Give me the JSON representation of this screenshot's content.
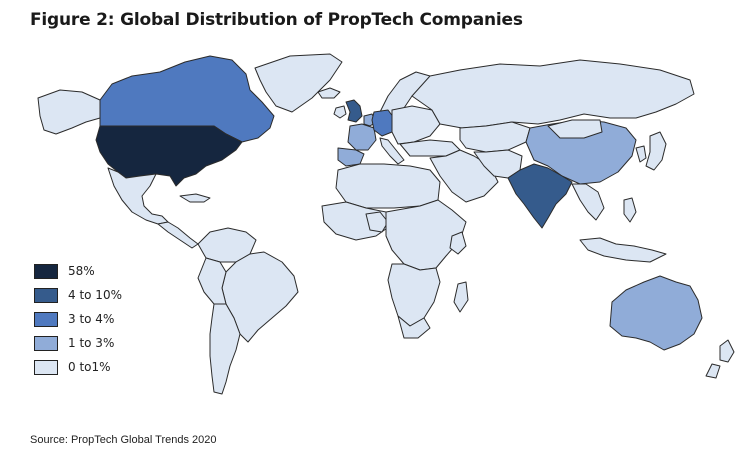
{
  "title": "Figure 2: Global Distribution of PropTech Companies",
  "source": "Source: PropTech Global Trends 2020",
  "colors": {
    "ocean": "#ffffff",
    "border": "#2b2b2b",
    "tier_58": "#15263f",
    "tier_4_10": "#355b8c",
    "tier_3_4": "#4f79bf",
    "tier_1_3": "#90acd8",
    "tier_0_1": "#dce6f3"
  },
  "legend": [
    {
      "label": "58%",
      "tier": "tier_58"
    },
    {
      "label": "4 to 10%",
      "tier": "tier_4_10"
    },
    {
      "label": "3 to 4%",
      "tier": "tier_3_4"
    },
    {
      "label": "1 to 3%",
      "tier": "tier_1_3"
    },
    {
      "label": "0 to1%",
      "tier": "tier_0_1"
    }
  ],
  "regions": [
    {
      "name": "United States",
      "tier": "tier_58"
    },
    {
      "name": "India",
      "tier": "tier_4_10"
    },
    {
      "name": "United Kingdom",
      "tier": "tier_4_10"
    },
    {
      "name": "Canada",
      "tier": "tier_3_4"
    },
    {
      "name": "Germany",
      "tier": "tier_3_4"
    },
    {
      "name": "China",
      "tier": "tier_1_3"
    },
    {
      "name": "Australia",
      "tier": "tier_1_3"
    },
    {
      "name": "France",
      "tier": "tier_1_3"
    },
    {
      "name": "Netherlands",
      "tier": "tier_1_3"
    },
    {
      "name": "Russia",
      "tier": "tier_0_1"
    },
    {
      "name": "Brazil",
      "tier": "tier_0_1"
    },
    {
      "name": "Mexico",
      "tier": "tier_0_1"
    }
  ]
}
